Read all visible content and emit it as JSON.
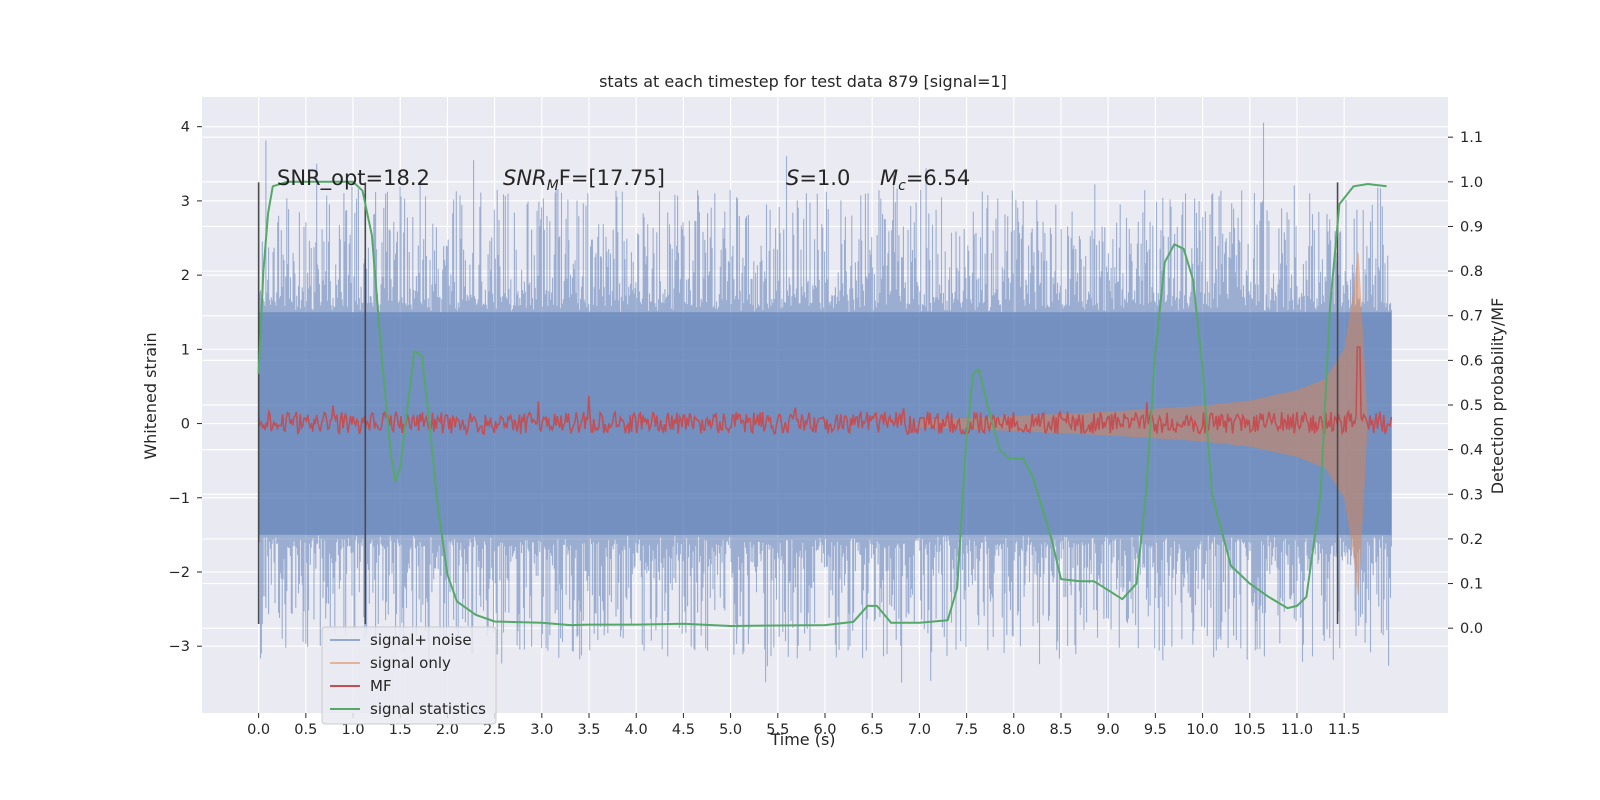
{
  "chart_data": {
    "type": "line",
    "title": "stats at each timestep for test data 879 [signal=1]",
    "xlabel": "Time (s)",
    "ylabel_left": "Whitened strain",
    "ylabel_right": "Detection probability/MF",
    "xlim": [
      -0.6,
      12.6
    ],
    "ylim_left": [
      -3.9,
      4.4
    ],
    "ylim_right": [
      -0.19,
      1.19
    ],
    "x_ticks": [
      0.0,
      0.5,
      1.0,
      1.5,
      2.0,
      2.5,
      3.0,
      3.5,
      4.0,
      4.5,
      5.0,
      5.5,
      6.0,
      6.5,
      7.0,
      7.5,
      8.0,
      8.5,
      9.0,
      9.5,
      10.0,
      10.5,
      11.0,
      11.5
    ],
    "x_tick_labels": [
      "0.0",
      "0.5",
      "1.0",
      "1.5",
      "2.0",
      "2.5",
      "3.0",
      "3.5",
      "4.0",
      "4.5",
      "5.0",
      "5.5",
      "6.0",
      "6.5",
      "7.0",
      "7.5",
      "8.0",
      "8.5",
      "9.0",
      "9.5",
      "10.0",
      "10.5",
      "11.0",
      "11.5"
    ],
    "y_left_ticks": [
      -3,
      -2,
      -1,
      0,
      1,
      2,
      3,
      4
    ],
    "y_left_tick_labels": [
      "−3",
      "−2",
      "−1",
      "0",
      "1",
      "2",
      "3",
      "4"
    ],
    "y_right_ticks": [
      0.0,
      0.1,
      0.2,
      0.3,
      0.4,
      0.5,
      0.6,
      0.7,
      0.8,
      0.9,
      1.0,
      1.1
    ],
    "y_right_tick_labels": [
      "0.0",
      "0.1",
      "0.2",
      "0.3",
      "0.4",
      "0.5",
      "0.6",
      "0.7",
      "0.8",
      "0.9",
      "1.0",
      "1.1"
    ],
    "grid": true,
    "legend_position": "lower-left",
    "annotations": {
      "snr_opt": "SNR_opt=18.2",
      "snr_mf_base": "SNR",
      "snr_mf_sub": "M",
      "snr_mf_rest": "F=[17.75]",
      "s_sym": "S",
      "s_rest": "=1.0",
      "mc_sym": "M",
      "mc_sub": "c",
      "mc_rest": "=6.54"
    },
    "vertical_lines": [
      {
        "x": 0.0,
        "y_range": [
          -2.7,
          3.25
        ]
      },
      {
        "x": 1.13,
        "y_range": [
          -2.7,
          3.25
        ]
      },
      {
        "x": 11.43,
        "y_range": [
          -2.7,
          3.25
        ]
      }
    ],
    "series": [
      {
        "name": "signal+ noise",
        "axis": "left",
        "color": "#4c72b0",
        "opacity": 0.5,
        "kind": "noise",
        "x_range": [
          0.0,
          12.0
        ],
        "core_band": 1.5,
        "spike_max": 4.1
      },
      {
        "name": "signal only",
        "axis": "left",
        "color": "#dd8452",
        "opacity": 0.5,
        "kind": "chirp",
        "x_range": [
          7.0,
          11.75
        ],
        "envelope": [
          [
            7.0,
            0.05
          ],
          [
            8.0,
            0.1
          ],
          [
            9.0,
            0.16
          ],
          [
            10.0,
            0.24
          ],
          [
            10.5,
            0.31
          ],
          [
            11.0,
            0.45
          ],
          [
            11.3,
            0.6
          ],
          [
            11.5,
            1.0
          ],
          [
            11.6,
            1.8
          ],
          [
            11.65,
            2.4
          ],
          [
            11.7,
            1.2
          ],
          [
            11.75,
            0.0
          ]
        ]
      },
      {
        "name": "MF",
        "axis": "right",
        "color": "#c44e52",
        "kind": "jitter",
        "x_range": [
          0.0,
          12.0
        ],
        "base": 0.46,
        "jitter": 0.025,
        "peak": {
          "x": 11.65,
          "y": 0.63
        }
      },
      {
        "name": "signal statistics",
        "axis": "right",
        "color": "#55a868",
        "kind": "line",
        "points": [
          [
            0.0,
            0.57
          ],
          [
            0.05,
            0.8
          ],
          [
            0.1,
            0.93
          ],
          [
            0.15,
            0.99
          ],
          [
            0.3,
            1.0
          ],
          [
            0.8,
            1.0
          ],
          [
            1.0,
            1.0
          ],
          [
            1.1,
            0.98
          ],
          [
            1.2,
            0.88
          ],
          [
            1.3,
            0.62
          ],
          [
            1.4,
            0.39
          ],
          [
            1.45,
            0.33
          ],
          [
            1.5,
            0.36
          ],
          [
            1.55,
            0.45
          ],
          [
            1.65,
            0.62
          ],
          [
            1.73,
            0.61
          ],
          [
            1.8,
            0.48
          ],
          [
            1.9,
            0.27
          ],
          [
            2.0,
            0.12
          ],
          [
            2.1,
            0.06
          ],
          [
            2.3,
            0.03
          ],
          [
            2.5,
            0.015
          ],
          [
            3.0,
            0.012
          ],
          [
            3.3,
            0.007
          ],
          [
            3.5,
            0.008
          ],
          [
            4.0,
            0.008
          ],
          [
            4.5,
            0.01
          ],
          [
            5.0,
            0.005
          ],
          [
            5.5,
            0.006
          ],
          [
            6.0,
            0.007
          ],
          [
            6.3,
            0.014
          ],
          [
            6.45,
            0.05
          ],
          [
            6.55,
            0.05
          ],
          [
            6.7,
            0.012
          ],
          [
            7.0,
            0.012
          ],
          [
            7.3,
            0.018
          ],
          [
            7.4,
            0.09
          ],
          [
            7.5,
            0.43
          ],
          [
            7.57,
            0.57
          ],
          [
            7.63,
            0.58
          ],
          [
            7.72,
            0.5
          ],
          [
            7.85,
            0.4
          ],
          [
            7.95,
            0.38
          ],
          [
            8.1,
            0.38
          ],
          [
            8.2,
            0.34
          ],
          [
            8.4,
            0.2
          ],
          [
            8.5,
            0.11
          ],
          [
            8.7,
            0.105
          ],
          [
            8.85,
            0.105
          ],
          [
            9.0,
            0.085
          ],
          [
            9.15,
            0.065
          ],
          [
            9.3,
            0.1
          ],
          [
            9.4,
            0.3
          ],
          [
            9.5,
            0.62
          ],
          [
            9.6,
            0.82
          ],
          [
            9.7,
            0.86
          ],
          [
            9.8,
            0.85
          ],
          [
            9.9,
            0.78
          ],
          [
            10.0,
            0.58
          ],
          [
            10.1,
            0.3
          ],
          [
            10.3,
            0.14
          ],
          [
            10.5,
            0.1
          ],
          [
            10.7,
            0.07
          ],
          [
            10.9,
            0.045
          ],
          [
            11.0,
            0.05
          ],
          [
            11.1,
            0.07
          ],
          [
            11.25,
            0.3
          ],
          [
            11.35,
            0.72
          ],
          [
            11.45,
            0.95
          ],
          [
            11.6,
            0.99
          ],
          [
            11.75,
            0.995
          ],
          [
            11.95,
            0.99
          ]
        ]
      }
    ]
  }
}
